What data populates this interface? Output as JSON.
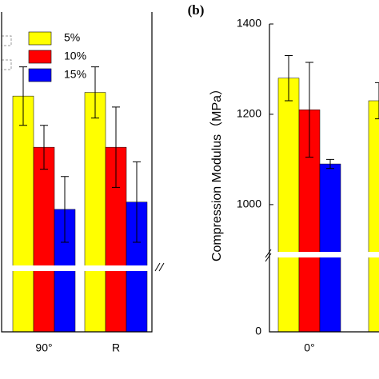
{
  "chart_data": [
    {
      "type": "bar",
      "categories": [
        "90°",
        "R"
      ],
      "series": [
        {
          "name": "5%",
          "color": "#ffff00",
          "values": [
            77,
            78
          ],
          "errors": [
            8,
            7
          ]
        },
        {
          "name": "10%",
          "color": "#ff0000",
          "values": [
            63,
            63
          ],
          "errors": [
            6,
            11
          ]
        },
        {
          "name": "15%",
          "color": "#0000ff",
          "values": [
            46,
            48
          ],
          "errors": [
            9,
            11
          ]
        }
      ],
      "ylim": [
        0,
        100
      ],
      "axis_break": [
        20,
        30
      ],
      "legend": "upper left"
    },
    {
      "type": "bar",
      "panel_label": "(b)",
      "y_label": "Compression Modulus（MPa）",
      "categories": [
        "0°",
        null
      ],
      "series": [
        {
          "name": "5%",
          "color": "#ffff00",
          "values": [
            1280,
            1230
          ],
          "errors": [
            50,
            40
          ]
        },
        {
          "name": "10%",
          "color": "#ff0000",
          "values": [
            1210,
            null
          ],
          "errors": [
            105,
            null
          ]
        },
        {
          "name": "15%",
          "color": "#0000ff",
          "values": [
            1090,
            null
          ],
          "errors": [
            10,
            null
          ]
        }
      ],
      "ylim": [
        0,
        1400
      ],
      "axis_break": [
        200,
        890
      ],
      "yticks": [
        0,
        1000,
        1200,
        1400
      ]
    }
  ]
}
